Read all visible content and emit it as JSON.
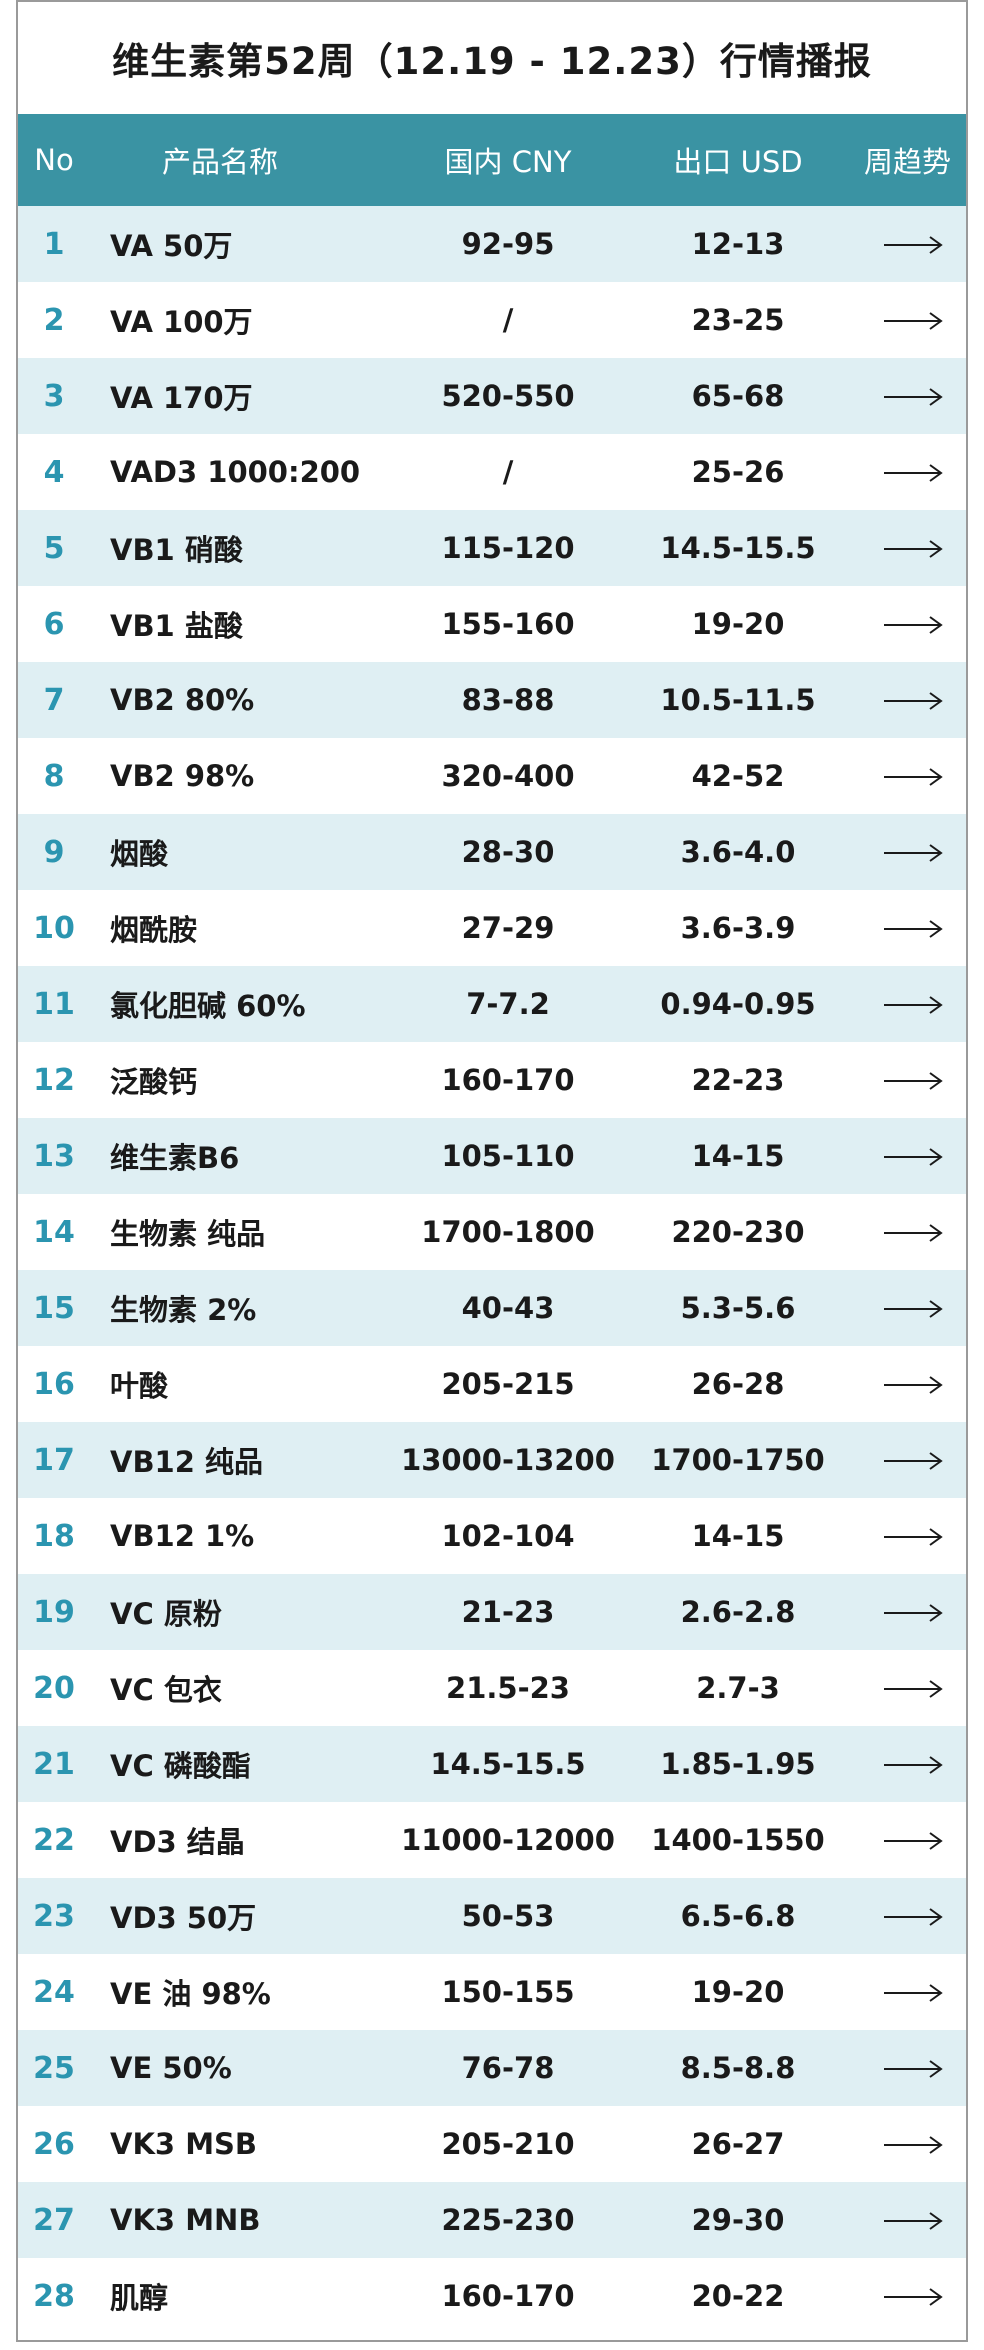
{
  "title": "维生素第52周（12.19 - 12.23）行情播报",
  "headers": {
    "no": "No",
    "name": "产品名称",
    "cny": "国内 CNY",
    "usd": "出口 USD",
    "trend": "周趋势"
  },
  "trend_icon": "right-arrow-icon",
  "colors": {
    "header_bg": "#3a93a3",
    "alt_row_bg": "#dfeff3",
    "number_color": "#2b95b0"
  },
  "rows": [
    {
      "no": "1",
      "name": "VA 50万",
      "cny": "92-95",
      "usd": "12-13"
    },
    {
      "no": "2",
      "name": "VA 100万",
      "cny": "/",
      "usd": "23-25"
    },
    {
      "no": "3",
      "name": "VA 170万",
      "cny": "520-550",
      "usd": "65-68"
    },
    {
      "no": "4",
      "name": "VAD3 1000:200",
      "cny": "/",
      "usd": "25-26"
    },
    {
      "no": "5",
      "name": "VB1 硝酸",
      "cny": "115-120",
      "usd": "14.5-15.5"
    },
    {
      "no": "6",
      "name": "VB1 盐酸",
      "cny": "155-160",
      "usd": "19-20"
    },
    {
      "no": "7",
      "name": "VB2 80%",
      "cny": "83-88",
      "usd": "10.5-11.5"
    },
    {
      "no": "8",
      "name": "VB2 98%",
      "cny": "320-400",
      "usd": "42-52"
    },
    {
      "no": "9",
      "name": "烟酸",
      "cny": "28-30",
      "usd": "3.6-4.0"
    },
    {
      "no": "10",
      "name": "烟酰胺",
      "cny": "27-29",
      "usd": "3.6-3.9"
    },
    {
      "no": "11",
      "name": "氯化胆碱 60%",
      "cny": "7-7.2",
      "usd": "0.94-0.95"
    },
    {
      "no": "12",
      "name": "泛酸钙",
      "cny": "160-170",
      "usd": "22-23"
    },
    {
      "no": "13",
      "name": "维生素B6",
      "cny": "105-110",
      "usd": "14-15"
    },
    {
      "no": "14",
      "name": "生物素 纯品",
      "cny": "1700-1800",
      "usd": "220-230"
    },
    {
      "no": "15",
      "name": "生物素 2%",
      "cny": "40-43",
      "usd": "5.3-5.6"
    },
    {
      "no": "16",
      "name": "叶酸",
      "cny": "205-215",
      "usd": "26-28"
    },
    {
      "no": "17",
      "name": "VB12 纯品",
      "cny": "13000-13200",
      "usd": "1700-1750"
    },
    {
      "no": "18",
      "name": "VB12 1%",
      "cny": "102-104",
      "usd": "14-15"
    },
    {
      "no": "19",
      "name": "VC 原粉",
      "cny": "21-23",
      "usd": "2.6-2.8"
    },
    {
      "no": "20",
      "name": "VC 包衣",
      "cny": "21.5-23",
      "usd": "2.7-3"
    },
    {
      "no": "21",
      "name": "VC 磷酸酯",
      "cny": "14.5-15.5",
      "usd": "1.85-1.95"
    },
    {
      "no": "22",
      "name": "VD3 结晶",
      "cny": "11000-12000",
      "usd": "1400-1550"
    },
    {
      "no": "23",
      "name": "VD3 50万",
      "cny": "50-53",
      "usd": "6.5-6.8"
    },
    {
      "no": "24",
      "name": "VE 油 98%",
      "cny": "150-155",
      "usd": "19-20"
    },
    {
      "no": "25",
      "name": "VE 50%",
      "cny": "76-78",
      "usd": "8.5-8.8"
    },
    {
      "no": "26",
      "name": "VK3 MSB",
      "cny": "205-210",
      "usd": "26-27"
    },
    {
      "no": "27",
      "name": "VK3 MNB",
      "cny": "225-230",
      "usd": "29-30"
    },
    {
      "no": "28",
      "name": "肌醇",
      "cny": "160-170",
      "usd": "20-22"
    }
  ]
}
